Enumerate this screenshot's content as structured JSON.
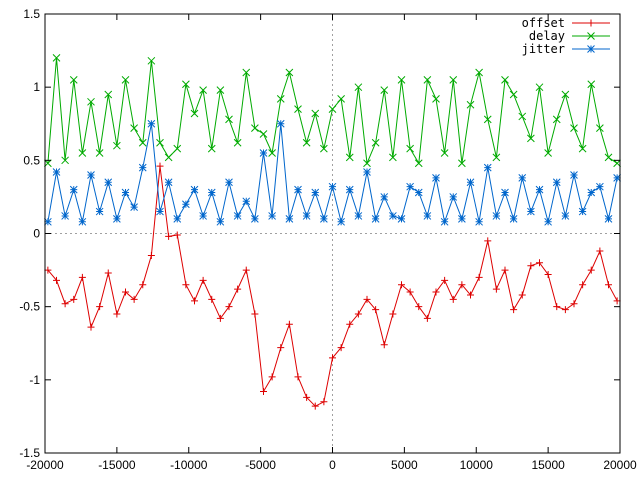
{
  "chart_data": {
    "type": "line",
    "title": "",
    "xlabel": "",
    "ylabel": "",
    "xlim": [
      -20000,
      20000
    ],
    "ylim": [
      -1.5,
      1.5
    ],
    "xticks": [
      -20000,
      -15000,
      -10000,
      -5000,
      0,
      5000,
      10000,
      15000,
      20000
    ],
    "yticks": [
      -1.5,
      -1,
      -0.5,
      0,
      0.5,
      1,
      1.5
    ],
    "xtick_labels": [
      "-20000",
      "-15000",
      "-10000",
      "-5000",
      "0",
      "5000",
      "10000",
      "15000",
      "20000"
    ],
    "ytick_labels": [
      "-1.5",
      "-1",
      "-0.5",
      "0",
      "0.5",
      "1",
      "1.5"
    ],
    "zero_axes": true,
    "grid": false,
    "legend_position": "top-right",
    "series": [
      {
        "name": "offset",
        "color": "#dd0000",
        "marker": "plus",
        "x": [
          -19800,
          -19200,
          -18600,
          -18000,
          -17400,
          -16800,
          -16200,
          -15600,
          -15000,
          -14400,
          -13800,
          -13200,
          -12600,
          -12000,
          -11400,
          -10800,
          -10200,
          -9600,
          -9000,
          -8400,
          -7800,
          -7200,
          -6600,
          -6000,
          -5400,
          -4800,
          -4200,
          -3600,
          -3000,
          -2400,
          -1800,
          -1200,
          -600,
          0,
          600,
          1200,
          1800,
          2400,
          3000,
          3600,
          4200,
          4800,
          5400,
          6000,
          6600,
          7200,
          7800,
          8400,
          9000,
          9600,
          10200,
          10800,
          11400,
          12000,
          12600,
          13200,
          13800,
          14400,
          15000,
          15600,
          16200,
          16800,
          17400,
          18000,
          18600,
          19200,
          19800
        ],
        "y": [
          -0.25,
          -0.32,
          -0.48,
          -0.45,
          -0.3,
          -0.64,
          -0.5,
          -0.27,
          -0.55,
          -0.4,
          -0.45,
          -0.35,
          -0.15,
          0.46,
          -0.02,
          -0.01,
          -0.35,
          -0.46,
          -0.32,
          -0.45,
          -0.58,
          -0.5,
          -0.38,
          -0.25,
          -0.55,
          -1.08,
          -0.98,
          -0.78,
          -0.62,
          -0.98,
          -1.12,
          -1.18,
          -1.15,
          -0.85,
          -0.78,
          -0.62,
          -0.55,
          -0.45,
          -0.52,
          -0.76,
          -0.55,
          -0.35,
          -0.4,
          -0.5,
          -0.58,
          -0.4,
          -0.32,
          -0.45,
          -0.35,
          -0.42,
          -0.3,
          -0.05,
          -0.38,
          -0.25,
          -0.52,
          -0.42,
          -0.22,
          -0.2,
          -0.28,
          -0.5,
          -0.52,
          -0.48,
          -0.35,
          -0.25,
          -0.12,
          -0.35,
          -0.46
        ]
      },
      {
        "name": "delay",
        "color": "#00aa00",
        "marker": "cross",
        "x": [
          -19800,
          -19200,
          -18600,
          -18000,
          -17400,
          -16800,
          -16200,
          -15600,
          -15000,
          -14400,
          -13800,
          -13200,
          -12600,
          -12000,
          -11400,
          -10800,
          -10200,
          -9600,
          -9000,
          -8400,
          -7800,
          -7200,
          -6600,
          -6000,
          -5400,
          -4800,
          -4200,
          -3600,
          -3000,
          -2400,
          -1800,
          -1200,
          -600,
          0,
          600,
          1200,
          1800,
          2400,
          3000,
          3600,
          4200,
          4800,
          5400,
          6000,
          6600,
          7200,
          7800,
          8400,
          9000,
          9600,
          10200,
          10800,
          11400,
          12000,
          12600,
          13200,
          13800,
          14400,
          15000,
          15600,
          16200,
          16800,
          17400,
          18000,
          18600,
          19200,
          19800
        ],
        "y": [
          0.48,
          1.2,
          0.5,
          1.05,
          0.55,
          0.9,
          0.55,
          0.95,
          0.6,
          1.05,
          0.72,
          0.62,
          1.18,
          0.62,
          0.52,
          0.58,
          1.02,
          0.82,
          0.98,
          0.58,
          0.98,
          0.78,
          0.62,
          1.1,
          0.72,
          0.68,
          0.55,
          0.92,
          1.1,
          0.85,
          0.62,
          0.82,
          0.58,
          0.85,
          0.92,
          0.52,
          1.0,
          0.48,
          0.62,
          0.98,
          0.52,
          1.05,
          0.58,
          0.48,
          1.05,
          0.92,
          0.55,
          1.05,
          0.48,
          0.88,
          1.1,
          0.78,
          0.52,
          1.05,
          0.95,
          0.8,
          0.65,
          1.0,
          0.55,
          0.78,
          0.95,
          0.72,
          0.58,
          1.02,
          0.72,
          0.52,
          0.48
        ]
      },
      {
        "name": "jitter",
        "color": "#0066cc",
        "marker": "star",
        "x": [
          -19800,
          -19200,
          -18600,
          -18000,
          -17400,
          -16800,
          -16200,
          -15600,
          -15000,
          -14400,
          -13800,
          -13200,
          -12600,
          -12000,
          -11400,
          -10800,
          -10200,
          -9600,
          -9000,
          -8400,
          -7800,
          -7200,
          -6600,
          -6000,
          -5400,
          -4800,
          -4200,
          -3600,
          -3000,
          -2400,
          -1800,
          -1200,
          -600,
          0,
          600,
          1200,
          1800,
          2400,
          3000,
          3600,
          4200,
          4800,
          5400,
          6000,
          6600,
          7200,
          7800,
          8400,
          9000,
          9600,
          10200,
          10800,
          11400,
          12000,
          12600,
          13200,
          13800,
          14400,
          15000,
          15600,
          16200,
          16800,
          17400,
          18000,
          18600,
          19200,
          19800
        ],
        "y": [
          0.08,
          0.42,
          0.12,
          0.3,
          0.08,
          0.4,
          0.15,
          0.35,
          0.1,
          0.28,
          0.18,
          0.45,
          0.75,
          0.15,
          0.35,
          0.1,
          0.2,
          0.3,
          0.12,
          0.28,
          0.08,
          0.35,
          0.12,
          0.22,
          0.1,
          0.55,
          0.12,
          0.75,
          0.1,
          0.3,
          0.12,
          0.28,
          0.1,
          0.32,
          0.08,
          0.3,
          0.12,
          0.42,
          0.1,
          0.25,
          0.12,
          0.1,
          0.32,
          0.28,
          0.12,
          0.38,
          0.08,
          0.25,
          0.1,
          0.35,
          0.08,
          0.45,
          0.12,
          0.28,
          0.1,
          0.38,
          0.15,
          0.3,
          0.08,
          0.35,
          0.12,
          0.4,
          0.15,
          0.28,
          0.32,
          0.1,
          0.38
        ]
      }
    ]
  }
}
